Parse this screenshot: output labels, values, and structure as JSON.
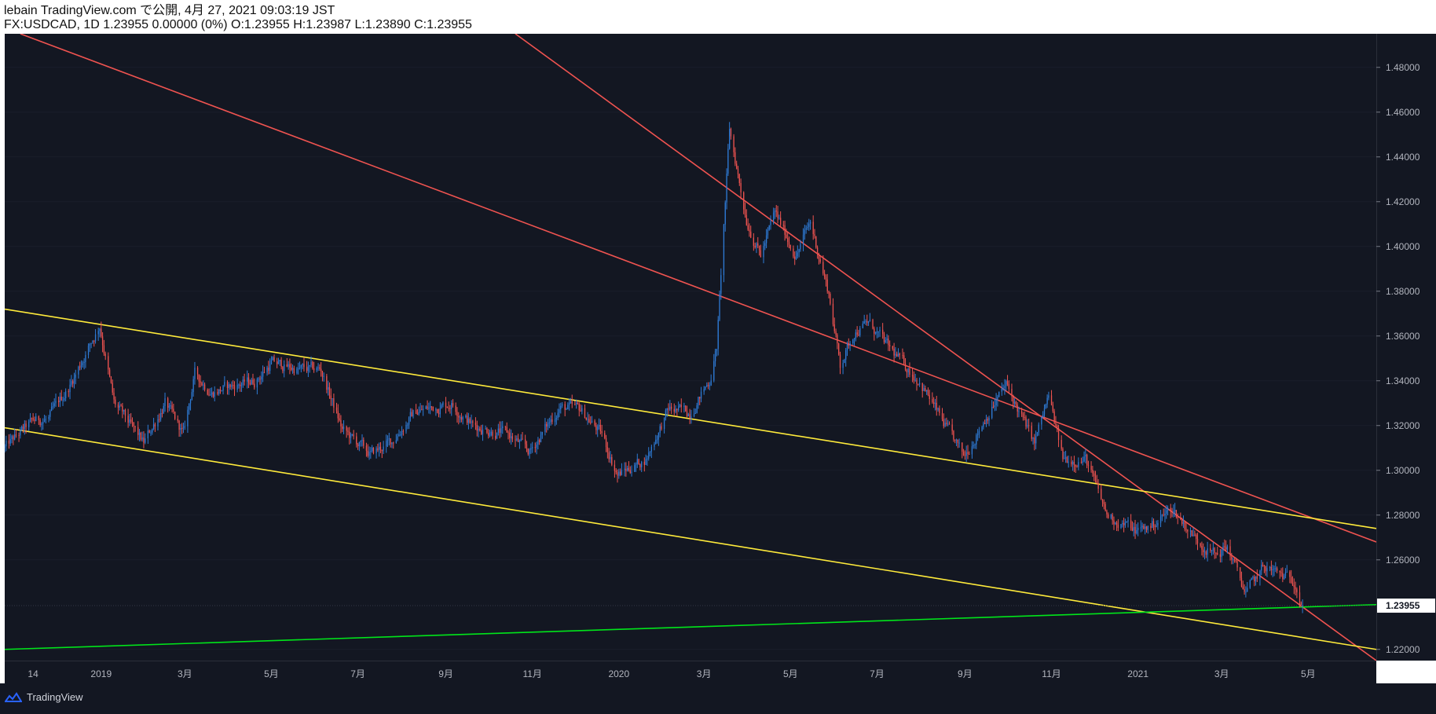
{
  "header": {
    "line1": "lebain TradingView.com で公開, 4月 27, 2021 09:03:19 JST",
    "line2": "FX:USDCAD, 1D 1.23955 0.00000 (0%) O:1.23955 H:1.23987 L:1.23890 C:1.23955"
  },
  "footer": {
    "brand": "TradingView"
  },
  "colors": {
    "background": "#131722",
    "up": "#2e7bd6",
    "down": "#ef5350",
    "red_line": "#ef5350",
    "yellow_line": "#ffeb3b",
    "green_line": "#00e51a",
    "price_label_bg": "#ffffff"
  },
  "chart_data": {
    "type": "candlestick",
    "symbol": "FX:USDCAD",
    "interval": "1D",
    "ylim": [
      1.215,
      1.495
    ],
    "y_ticks": [
      "1.48000",
      "1.46000",
      "1.44000",
      "1.42000",
      "1.40000",
      "1.38000",
      "1.36000",
      "1.34000",
      "1.32000",
      "1.30000",
      "1.28000",
      "1.26000",
      "1.22000"
    ],
    "x_ticks": [
      "14",
      "2019",
      "3月",
      "5月",
      "7月",
      "9月",
      "11月",
      "2020",
      "3月",
      "5月",
      "7月",
      "9月",
      "11月",
      "2021",
      "3月",
      "5月"
    ],
    "x_tick_dates": [
      "2018-11-14",
      "2019-01-01",
      "2019-03-01",
      "2019-05-01",
      "2019-07-01",
      "2019-09-01",
      "2019-11-01",
      "2020-01-01",
      "2020-03-01",
      "2020-05-01",
      "2020-07-01",
      "2020-09-01",
      "2020-11-01",
      "2021-01-01",
      "2021-03-01",
      "2021-05-01"
    ],
    "x_start": "2018-10-25",
    "x_end": "2021-06-18",
    "last_price": "1.23955",
    "price_path": [
      [
        "2018-10-25",
        1.31
      ],
      [
        "2018-11-14",
        1.322
      ],
      [
        "2018-11-25",
        1.323
      ],
      [
        "2018-12-10",
        1.338
      ],
      [
        "2018-12-31",
        1.365
      ],
      [
        "2019-01-10",
        1.33
      ],
      [
        "2019-01-31",
        1.312
      ],
      [
        "2019-02-15",
        1.33
      ],
      [
        "2019-02-28",
        1.316
      ],
      [
        "2019-03-08",
        1.343
      ],
      [
        "2019-03-20",
        1.335
      ],
      [
        "2019-04-05",
        1.338
      ],
      [
        "2019-04-20",
        1.34
      ],
      [
        "2019-05-01",
        1.348
      ],
      [
        "2019-05-20",
        1.345
      ],
      [
        "2019-06-05",
        1.345
      ],
      [
        "2019-06-20",
        1.318
      ],
      [
        "2019-07-10",
        1.307
      ],
      [
        "2019-07-25",
        1.313
      ],
      [
        "2019-08-10",
        1.326
      ],
      [
        "2019-09-05",
        1.33
      ],
      [
        "2019-09-20",
        1.32
      ],
      [
        "2019-10-15",
        1.316
      ],
      [
        "2019-10-30",
        1.308
      ],
      [
        "2019-11-20",
        1.328
      ],
      [
        "2019-12-05",
        1.327
      ],
      [
        "2019-12-20",
        1.316
      ],
      [
        "2019-12-31",
        1.298
      ],
      [
        "2020-01-20",
        1.305
      ],
      [
        "2020-02-05",
        1.327
      ],
      [
        "2020-02-20",
        1.326
      ],
      [
        "2020-03-05",
        1.34
      ],
      [
        "2020-03-10",
        1.355
      ],
      [
        "2020-03-19",
        1.452
      ],
      [
        "2020-03-31",
        1.412
      ],
      [
        "2020-04-10",
        1.396
      ],
      [
        "2020-04-20",
        1.415
      ],
      [
        "2020-05-05",
        1.396
      ],
      [
        "2020-05-15",
        1.411
      ],
      [
        "2020-05-28",
        1.379
      ],
      [
        "2020-06-05",
        1.347
      ],
      [
        "2020-06-15",
        1.362
      ],
      [
        "2020-06-25",
        1.366
      ],
      [
        "2020-07-10",
        1.354
      ],
      [
        "2020-07-31",
        1.34
      ],
      [
        "2020-08-15",
        1.323
      ],
      [
        "2020-08-31",
        1.306
      ],
      [
        "2020-09-15",
        1.323
      ],
      [
        "2020-09-30",
        1.338
      ],
      [
        "2020-10-20",
        1.312
      ],
      [
        "2020-10-30",
        1.333
      ],
      [
        "2020-11-09",
        1.305
      ],
      [
        "2020-11-25",
        1.305
      ],
      [
        "2020-12-10",
        1.28
      ],
      [
        "2020-12-31",
        1.273
      ],
      [
        "2021-01-10",
        1.275
      ],
      [
        "2021-01-25",
        1.283
      ],
      [
        "2021-02-10",
        1.27
      ],
      [
        "2021-02-25",
        1.262
      ],
      [
        "2021-03-05",
        1.266
      ],
      [
        "2021-03-18",
        1.245
      ],
      [
        "2021-03-31",
        1.257
      ],
      [
        "2021-04-15",
        1.252
      ],
      [
        "2021-04-22",
        1.251
      ],
      [
        "2021-04-27",
        1.2396
      ]
    ],
    "trendlines": [
      {
        "name": "red-upper",
        "color": "red",
        "p1": [
          "2018-11-05",
          1.495
        ],
        "p2": [
          "2021-06-18",
          1.268
        ]
      },
      {
        "name": "red-lower",
        "color": "red",
        "p1": [
          "2019-10-20",
          1.495
        ],
        "p2": [
          "2021-06-18",
          1.215
        ]
      },
      {
        "name": "yellow-upper",
        "color": "yellow",
        "p1": [
          "2018-10-25",
          1.372
        ],
        "p2": [
          "2021-06-18",
          1.274
        ]
      },
      {
        "name": "yellow-lower",
        "color": "yellow",
        "p1": [
          "2018-10-25",
          1.319
        ],
        "p2": [
          "2021-06-18",
          1.22
        ]
      },
      {
        "name": "green-support",
        "color": "green",
        "p1": [
          "2018-10-25",
          1.22
        ],
        "p2": [
          "2021-06-18",
          1.24
        ]
      }
    ]
  }
}
